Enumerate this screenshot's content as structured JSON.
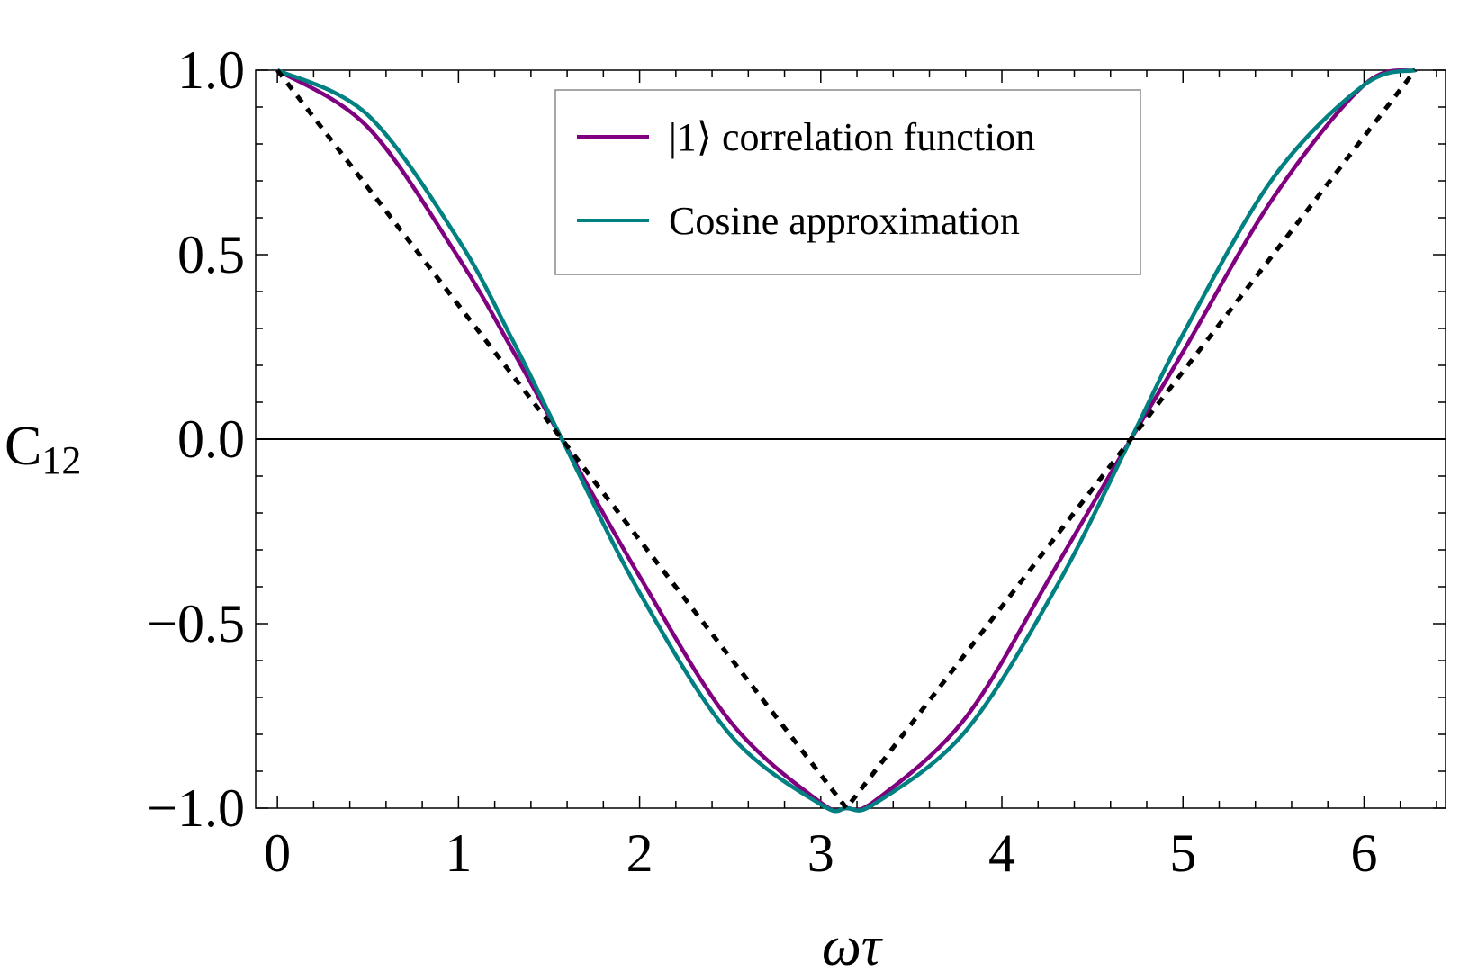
{
  "chart_data": {
    "type": "line",
    "title": "",
    "xlabel": "ωτ",
    "ylabel": {
      "main": "C",
      "subscript": "12"
    },
    "xlim": [
      -0.12,
      6.45
    ],
    "ylim": [
      -1.0,
      1.0
    ],
    "x_ticks": [
      "0",
      "1",
      "2",
      "3",
      "4",
      "5",
      "6"
    ],
    "y_ticks": [
      "1.0",
      "0.5",
      "0.0",
      "−0.5",
      "−1.0"
    ],
    "grid": false,
    "legend_position": "top-center",
    "zero_line": true,
    "series": [
      {
        "name": "|1⟩ correlation function",
        "color": "#800080",
        "style": "solid",
        "x": [
          0,
          0.5,
          1.0,
          1.3,
          1.571,
          2.0,
          2.5,
          3.0,
          3.1416,
          3.3,
          3.8,
          4.3,
          4.712,
          5.0,
          5.5,
          6.0,
          6.283
        ],
        "y": [
          1.0,
          0.845,
          0.492,
          0.24,
          0.0,
          -0.372,
          -0.765,
          -0.985,
          -1.0,
          -0.98,
          -0.755,
          -0.345,
          0.0,
          0.236,
          0.655,
          0.96,
          1.0
        ]
      },
      {
        "name": "Cosine approximation",
        "color": "#008080",
        "style": "solid",
        "x": [
          0,
          0.5,
          1.0,
          1.3,
          1.571,
          2.0,
          2.5,
          3.0,
          3.1416,
          3.3,
          3.8,
          4.3,
          4.712,
          5.0,
          5.5,
          6.0,
          6.283
        ],
        "y": [
          1.0,
          0.878,
          0.54,
          0.267,
          0.0,
          -0.416,
          -0.801,
          -0.99,
          -1.0,
          -0.987,
          -0.791,
          -0.401,
          0.0,
          0.284,
          0.709,
          0.96,
          1.0
        ]
      },
      {
        "name": "",
        "color": "#000000",
        "style": "dotted",
        "x": [
          0,
          3.1416,
          6.283
        ],
        "y": [
          1.0,
          -1.0,
          1.0
        ]
      }
    ]
  }
}
